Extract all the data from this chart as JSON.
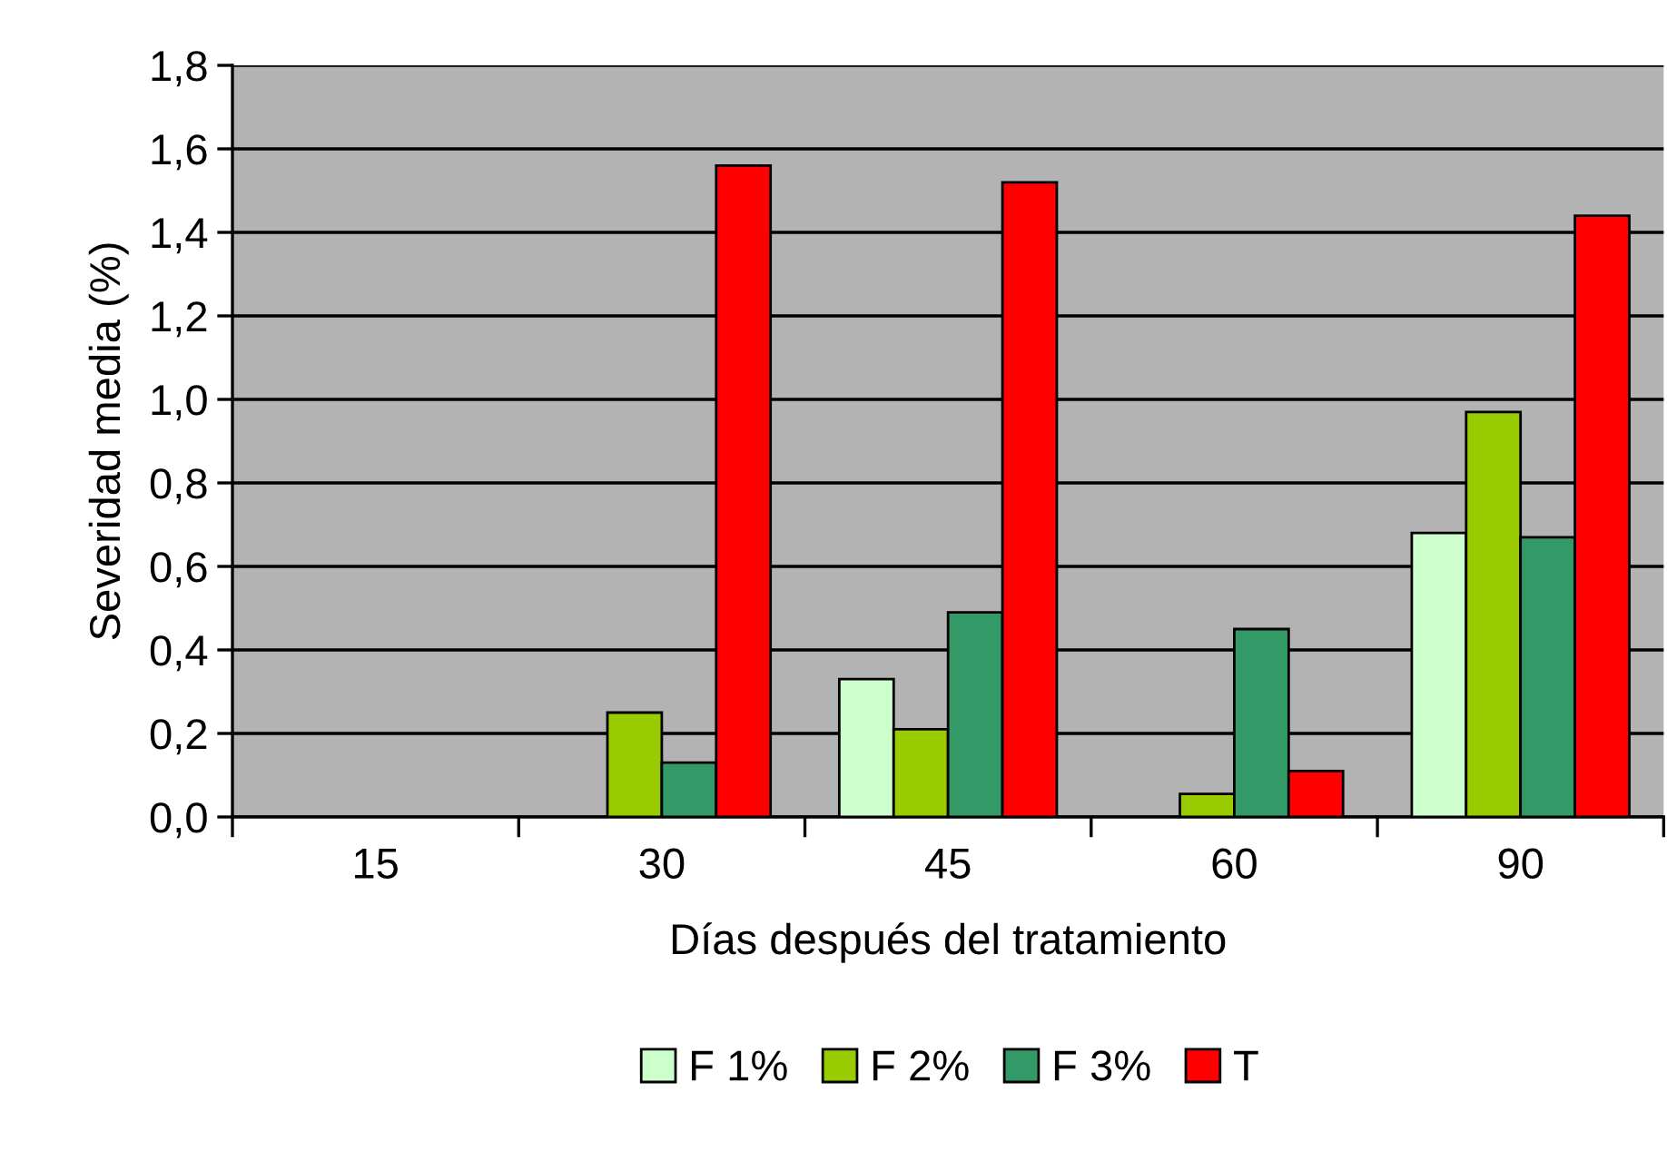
{
  "chart_data": {
    "type": "bar",
    "xlabel": "Días después del tratamiento",
    "ylabel": "Severidad media (%)",
    "categories": [
      "15",
      "30",
      "45",
      "60",
      "90"
    ],
    "series": [
      {
        "name": "F 1%",
        "color": "#ccffcc",
        "values": [
          null,
          null,
          0.33,
          null,
          0.68
        ]
      },
      {
        "name": "F 2%",
        "color": "#99cc00",
        "values": [
          null,
          0.25,
          0.21,
          0.055,
          0.97
        ]
      },
      {
        "name": "F 3%",
        "color": "#339966",
        "values": [
          null,
          0.13,
          0.49,
          0.45,
          0.67
        ]
      },
      {
        "name": "T",
        "color": "#ff0000",
        "values": [
          null,
          1.56,
          1.52,
          0.11,
          1.44
        ]
      }
    ],
    "ylim": [
      0,
      1.8
    ],
    "yticks": [
      {
        "value": 0,
        "label": "0,0"
      },
      {
        "value": 0.2,
        "label": "0,2"
      },
      {
        "value": 0.4,
        "label": "0,4"
      },
      {
        "value": 0.6,
        "label": "0,6"
      },
      {
        "value": 0.8,
        "label": "0,8"
      },
      {
        "value": 1.0,
        "label": "1,0"
      },
      {
        "value": 1.2,
        "label": "1,2"
      },
      {
        "value": 1.4,
        "label": "1,4"
      },
      {
        "value": 1.6,
        "label": "1,6"
      },
      {
        "value": 1.8,
        "label": "1,8"
      }
    ],
    "grid": "y",
    "legend": "bottom"
  }
}
